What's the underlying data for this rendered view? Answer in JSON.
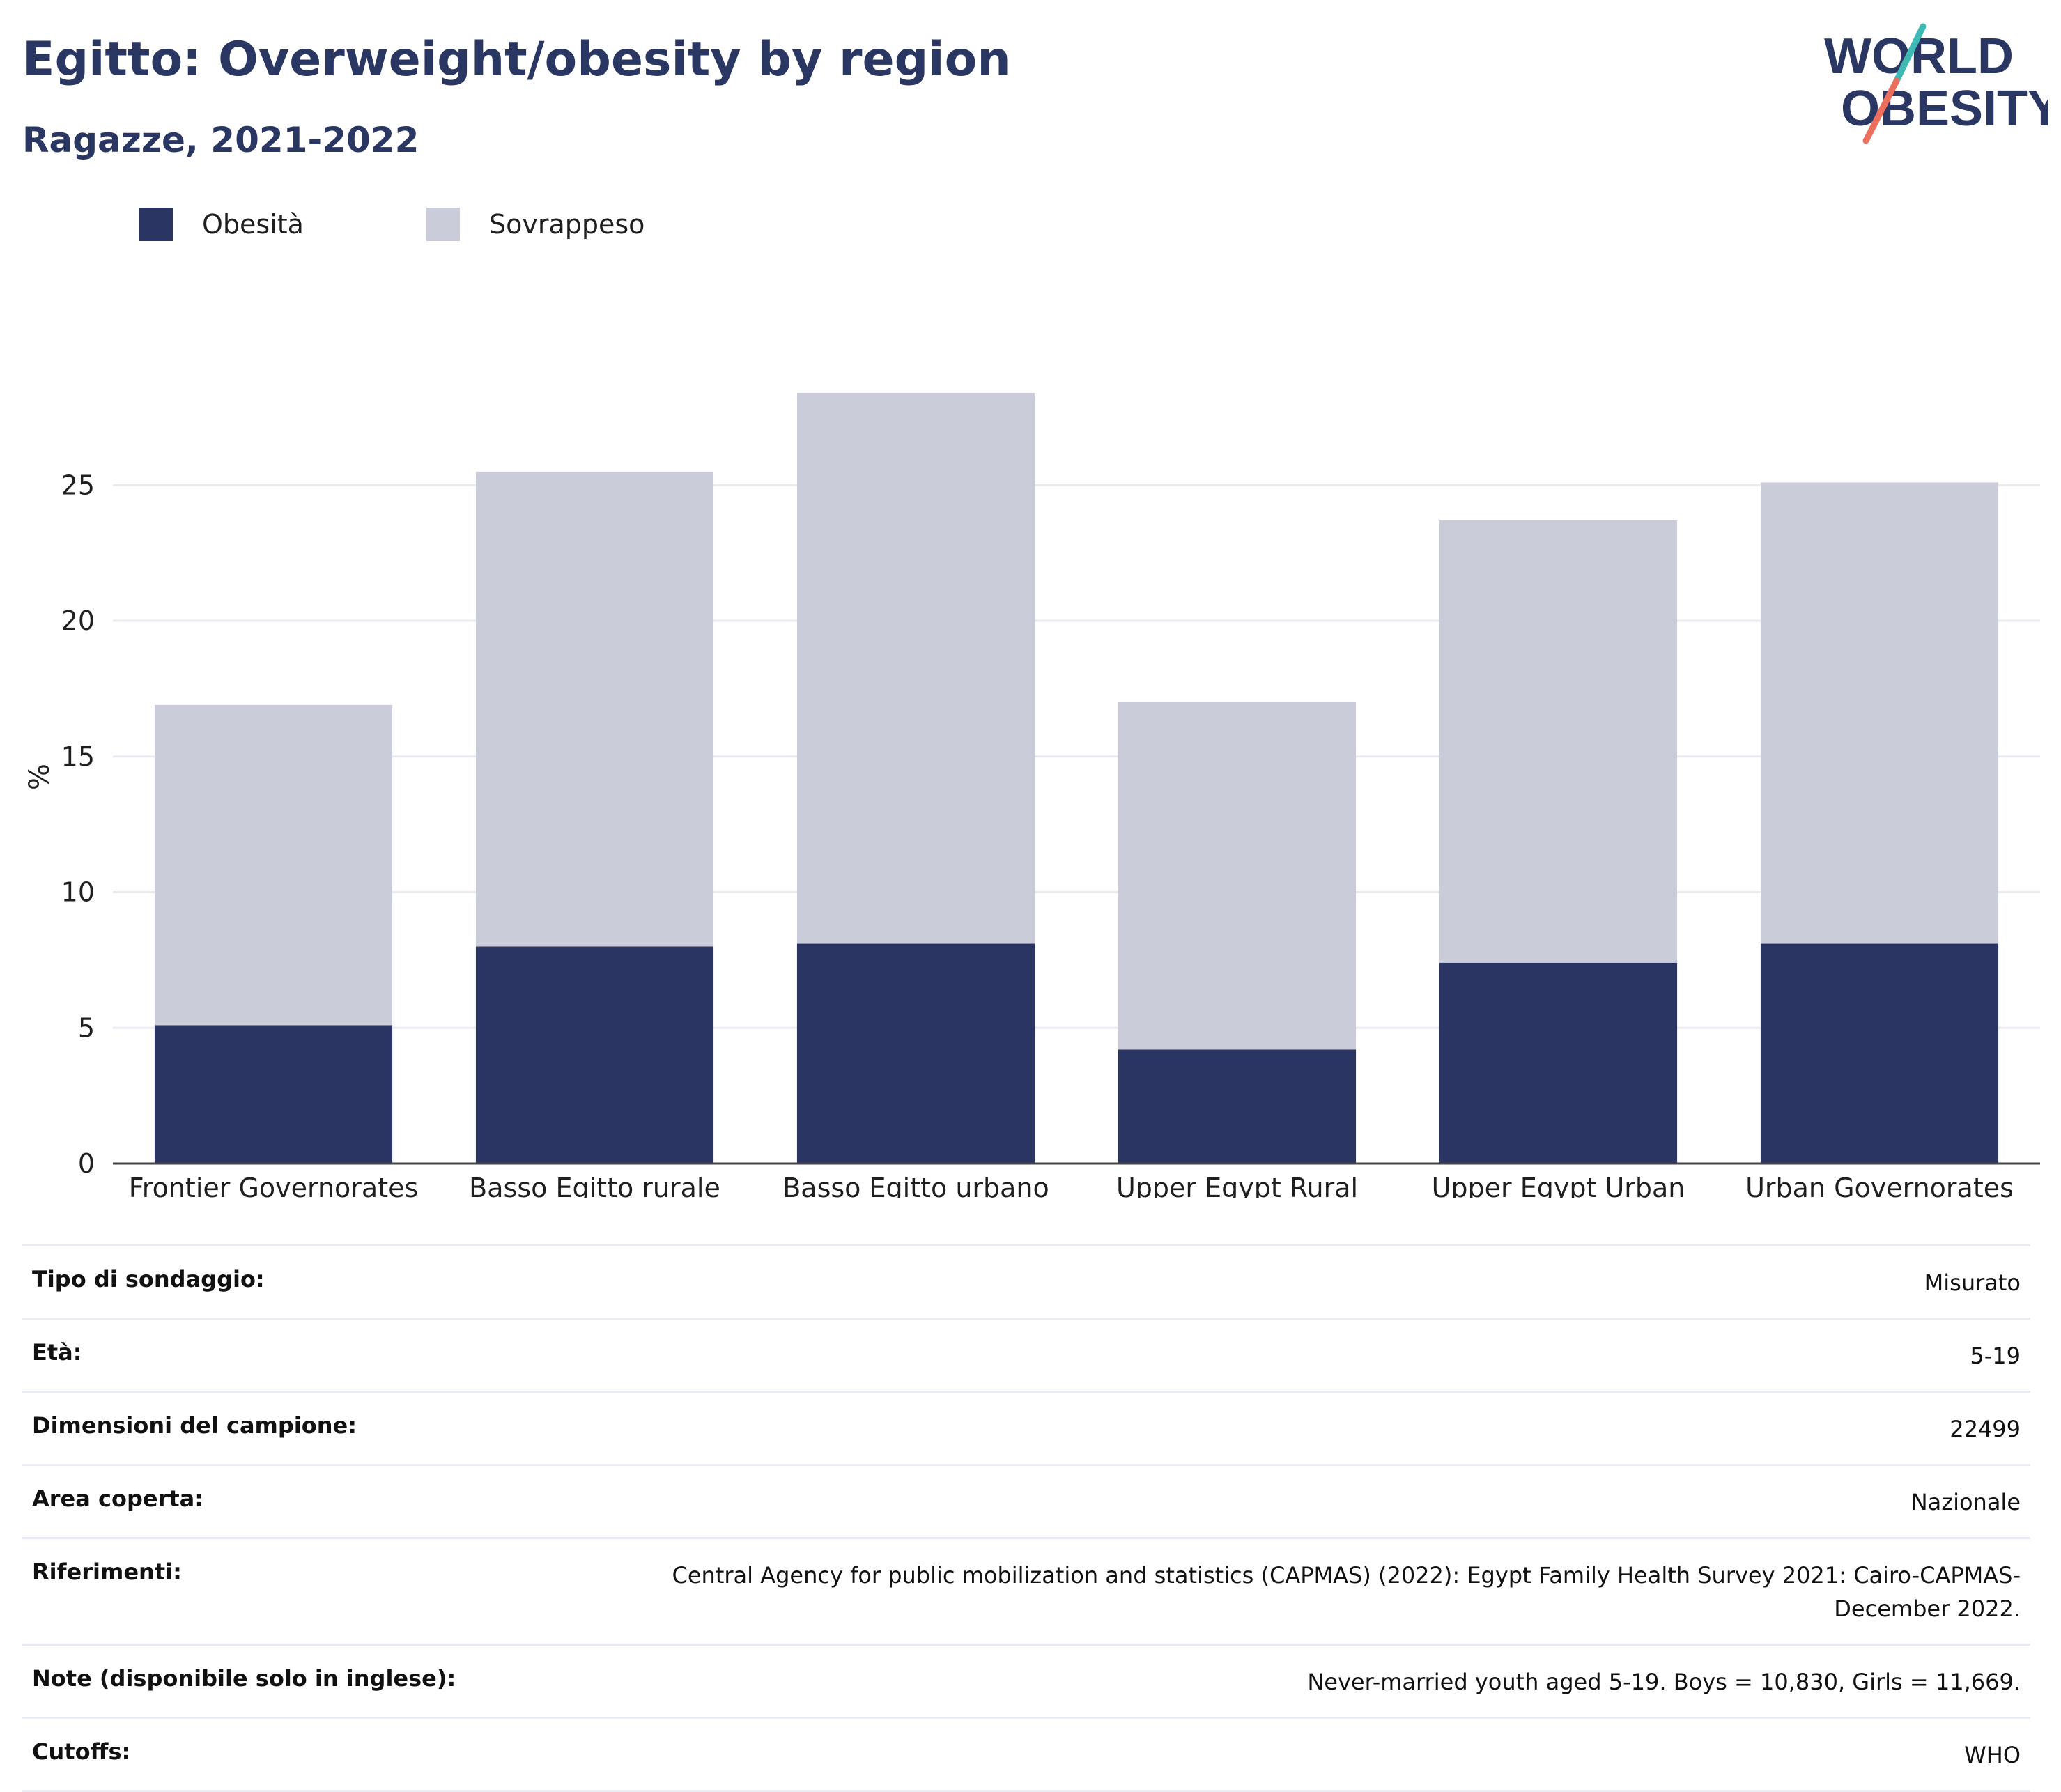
{
  "header": {
    "title": "Egitto: Overweight/obesity by region",
    "subtitle": "Ragazze, 2021-2022"
  },
  "logo": {
    "line1": "WORLD",
    "line2": "OBESITY"
  },
  "colors": {
    "obesity": "#2b3563",
    "overweight": "#cacdd9",
    "title": "#2b3763",
    "logo_teal": "#3fb9b4",
    "logo_red": "#ec6f5e"
  },
  "chart_data": {
    "type": "bar",
    "stacked": true,
    "categories": [
      "Frontier Governorates",
      "Basso Egitto rurale",
      "Basso Egitto urbano",
      "Upper Egypt Rural",
      "Upper Egypt Urban",
      "Urban Governorates"
    ],
    "series": [
      {
        "name": "Obesità",
        "values": [
          5.1,
          8.0,
          8.1,
          4.2,
          7.4,
          8.1
        ]
      },
      {
        "name": "Sovrappeso",
        "values": [
          11.8,
          17.5,
          20.3,
          12.8,
          16.3,
          17.0
        ]
      }
    ],
    "ylabel": "%",
    "ylim": [
      0,
      28.5
    ],
    "yticks": [
      0,
      5,
      10,
      15,
      20,
      25
    ],
    "grid": true,
    "legend_position": "top-left"
  },
  "info": {
    "rows": [
      {
        "label": "Tipo di sondaggio:",
        "value": "Misurato"
      },
      {
        "label": "Età:",
        "value": "5-19"
      },
      {
        "label": "Dimensioni del campione:",
        "value": "22499"
      },
      {
        "label": "Area coperta:",
        "value": "Nazionale"
      },
      {
        "label": "Riferimenti:",
        "value": "Central Agency for public mobilization and statistics (CAPMAS) (2022): Egypt Family Health Survey 2021: Cairo-CAPMAS-December 2022."
      },
      {
        "label": "Note (disponibile solo in inglese):",
        "value": "Never-married youth aged 5-19. Boys = 10,830, Girls = 11,669."
      },
      {
        "label": "Cutoffs:",
        "value": "WHO"
      }
    ]
  }
}
